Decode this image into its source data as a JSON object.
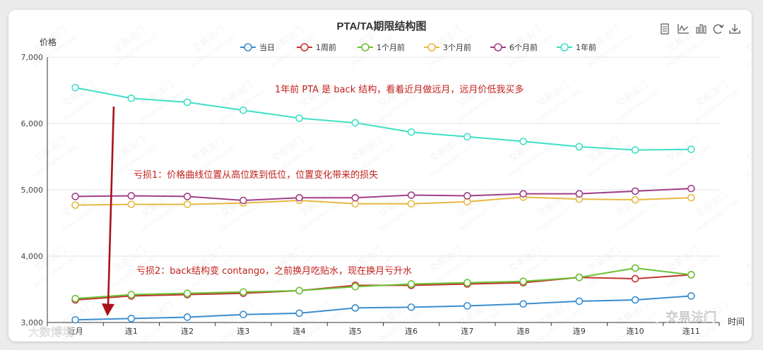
{
  "chart_data": {
    "type": "line",
    "title": "PTA/TA期限结构图",
    "ylabel": "价格",
    "xlabel": "时间",
    "ylim": [
      3000,
      7000
    ],
    "y_ticks": [
      "3,000",
      "4,000",
      "5,000",
      "6,000",
      "7,000"
    ],
    "y_tick_values": [
      3000,
      4000,
      5000,
      6000,
      7000
    ],
    "grid": true,
    "legend_placement": "top-center",
    "categories": [
      "近月",
      "连1",
      "连2",
      "连3",
      "连4",
      "连5",
      "连6",
      "连7",
      "连8",
      "连9",
      "连10",
      "连11"
    ],
    "series": [
      {
        "name": "当日",
        "color": "#3a8ed0",
        "values": [
          3040,
          3060,
          3080,
          3120,
          3140,
          3220,
          3230,
          3250,
          3280,
          3320,
          3340,
          3400
        ]
      },
      {
        "name": "1周前",
        "color": "#c23531",
        "values": [
          3340,
          3400,
          3420,
          3440,
          3480,
          3560,
          3560,
          3580,
          3600,
          3680,
          3660,
          3720
        ]
      },
      {
        "name": "1个月前",
        "color": "#6bc235",
        "values": [
          3360,
          3420,
          3440,
          3460,
          3480,
          3540,
          3580,
          3600,
          3620,
          3680,
          3820,
          3720
        ]
      },
      {
        "name": "3个月前",
        "color": "#e8b942",
        "values": [
          4770,
          4780,
          4780,
          4800,
          4840,
          4790,
          4790,
          4820,
          4890,
          4860,
          4850,
          4880
        ]
      },
      {
        "name": "6个月前",
        "color": "#a03e88",
        "values": [
          4900,
          4910,
          4900,
          4840,
          4880,
          4880,
          4920,
          4910,
          4940,
          4940,
          4980,
          5020
        ]
      },
      {
        "name": "1年前",
        "color": "#3de0c5",
        "values": [
          6540,
          6380,
          6320,
          6200,
          6080,
          6010,
          5870,
          5800,
          5730,
          5650,
          5600,
          5610
        ]
      }
    ],
    "annotations": [
      {
        "id": "ann-backwardation",
        "text": "1年前 PTA 是 back 结构，看着近月做远月，远月价低我买多",
        "color": "#c0211d"
      },
      {
        "id": "ann-loss-1",
        "text": "亏损1：价格曲线位置从高位跌到低位，位置变化带来的损失",
        "color": "#c0211d"
      },
      {
        "id": "ann-loss-2",
        "text": "亏损2：back结构变 contango，之前换月吃贴水，现在换月亏升水",
        "color": "#c0211d"
      }
    ],
    "arrow_color": "#a8121a"
  },
  "toolbox": [
    {
      "id": "data-view",
      "icon": "data-view-icon"
    },
    {
      "id": "line-chart",
      "icon": "line-chart-icon"
    },
    {
      "id": "bar-chart",
      "icon": "bar-chart-icon"
    },
    {
      "id": "restore",
      "icon": "refresh-icon"
    },
    {
      "id": "save-image",
      "icon": "download-icon"
    }
  ],
  "watermarks": {
    "text_cn": "交易法门",
    "text_en": "jiaoyifamen.com",
    "logo_bottom_left": "大数博境",
    "logo_bottom_right": "交易法门"
  }
}
